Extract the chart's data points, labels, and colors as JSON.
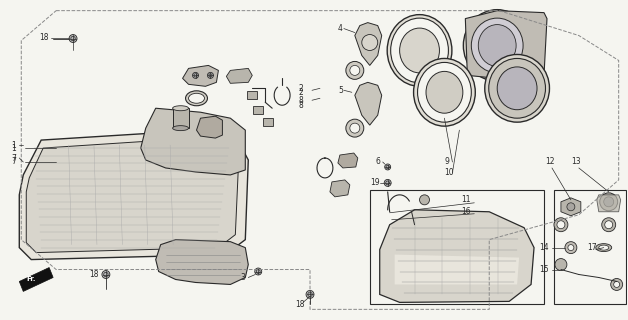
{
  "bg_color": "#f5f5f0",
  "line_color": "#2a2a2a",
  "fig_width": 6.28,
  "fig_height": 3.2,
  "dpi": 100,
  "outer_boundary": {
    "color": "#555555",
    "lw": 0.7
  }
}
